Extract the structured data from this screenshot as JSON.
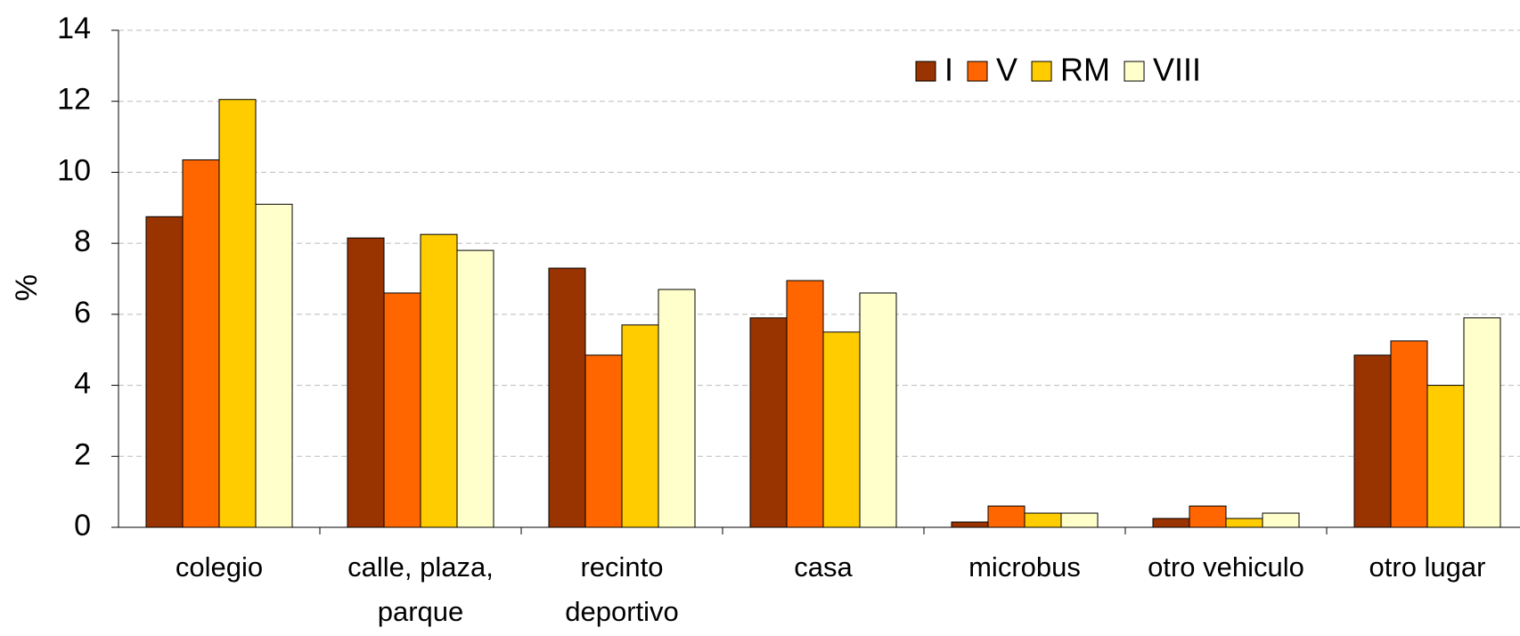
{
  "chart_data": {
    "type": "bar",
    "ylabel": "%",
    "categories": [
      "colegio",
      "calle, plaza, parque",
      "recinto deportivo",
      "casa",
      "microbus",
      "otro vehiculo",
      "otro lugar"
    ],
    "series": [
      {
        "name": "I",
        "color": "#993300",
        "values": [
          8.75,
          8.15,
          7.3,
          5.9,
          0.15,
          0.25,
          4.85
        ]
      },
      {
        "name": "V",
        "color": "#ff6600",
        "values": [
          10.35,
          6.6,
          4.85,
          6.95,
          0.6,
          0.6,
          5.25
        ]
      },
      {
        "name": "RM",
        "color": "#ffcc00",
        "values": [
          12.05,
          8.25,
          5.7,
          5.5,
          0.4,
          0.25,
          4.0
        ]
      },
      {
        "name": "VIII",
        "color": "#ffffcc",
        "values": [
          9.1,
          7.8,
          6.7,
          6.6,
          0.4,
          0.4,
          5.9
        ]
      }
    ],
    "ylim": [
      0,
      14
    ],
    "yticks": [
      0,
      2,
      4,
      6,
      8,
      10,
      12,
      14
    ],
    "grid": true
  }
}
